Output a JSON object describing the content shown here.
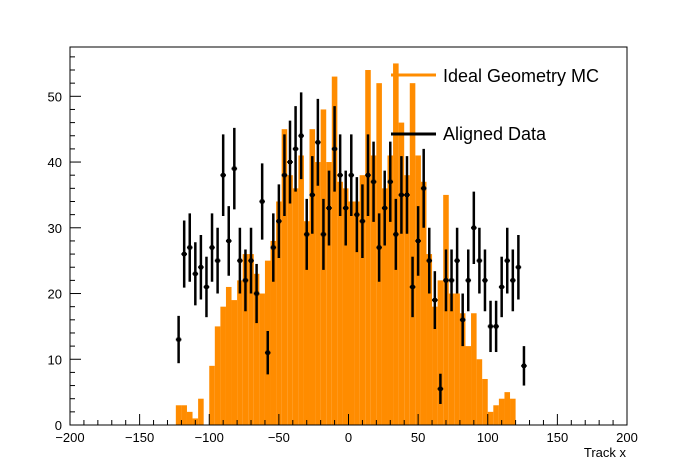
{
  "chart_data": {
    "type": "bar",
    "title": "",
    "xlabel": "Track x",
    "ylabel": "",
    "xlim": [
      -200,
      200
    ],
    "ylim": [
      0,
      57.5
    ],
    "bin_width": 4,
    "x_ticks": [
      -200,
      -150,
      -100,
      -50,
      0,
      50,
      100,
      150,
      200
    ],
    "y_ticks": [
      0,
      10,
      20,
      30,
      40,
      50
    ],
    "grid": false,
    "legend_position": "top-right",
    "series": [
      {
        "name": "Ideal Geometry MC",
        "style": "filled-histogram",
        "color": "#ff8c00",
        "bins": [
          {
            "x": -122,
            "y": 3
          },
          {
            "x": -118,
            "y": 3
          },
          {
            "x": -114,
            "y": 2
          },
          {
            "x": -110,
            "y": 1
          },
          {
            "x": -106,
            "y": 4
          },
          {
            "x": -102,
            "y": 0
          },
          {
            "x": -98,
            "y": 9
          },
          {
            "x": -94,
            "y": 15
          },
          {
            "x": -90,
            "y": 18
          },
          {
            "x": -86,
            "y": 21
          },
          {
            "x": -82,
            "y": 19
          },
          {
            "x": -78,
            "y": 22
          },
          {
            "x": -74,
            "y": 26
          },
          {
            "x": -70,
            "y": 26
          },
          {
            "x": -66,
            "y": 23
          },
          {
            "x": -62,
            "y": 20
          },
          {
            "x": -58,
            "y": 25
          },
          {
            "x": -54,
            "y": 28
          },
          {
            "x": -50,
            "y": 34
          },
          {
            "x": -46,
            "y": 45
          },
          {
            "x": -42,
            "y": 38
          },
          {
            "x": -38,
            "y": 36
          },
          {
            "x": -34,
            "y": 41
          },
          {
            "x": -30,
            "y": 31
          },
          {
            "x": -26,
            "y": 45
          },
          {
            "x": -22,
            "y": 40
          },
          {
            "x": -18,
            "y": 48
          },
          {
            "x": -14,
            "y": 40
          },
          {
            "x": -10,
            "y": 53
          },
          {
            "x": -6,
            "y": 37
          },
          {
            "x": -2,
            "y": 36
          },
          {
            "x": 2,
            "y": 34
          },
          {
            "x": 6,
            "y": 34
          },
          {
            "x": 10,
            "y": 38
          },
          {
            "x": 14,
            "y": 54
          },
          {
            "x": 18,
            "y": 41
          },
          {
            "x": 22,
            "y": 52
          },
          {
            "x": 26,
            "y": 36
          },
          {
            "x": 30,
            "y": 41
          },
          {
            "x": 34,
            "y": 55
          },
          {
            "x": 38,
            "y": 46
          },
          {
            "x": 42,
            "y": 38
          },
          {
            "x": 46,
            "y": 52
          },
          {
            "x": 50,
            "y": 41
          },
          {
            "x": 54,
            "y": 37
          },
          {
            "x": 58,
            "y": 26
          },
          {
            "x": 62,
            "y": 18
          },
          {
            "x": 66,
            "y": 22
          },
          {
            "x": 70,
            "y": 35
          },
          {
            "x": 74,
            "y": 20
          },
          {
            "x": 78,
            "y": 20
          },
          {
            "x": 82,
            "y": 17
          },
          {
            "x": 86,
            "y": 12
          },
          {
            "x": 90,
            "y": 17
          },
          {
            "x": 94,
            "y": 10
          },
          {
            "x": 98,
            "y": 7
          },
          {
            "x": 102,
            "y": 2
          },
          {
            "x": 106,
            "y": 3
          },
          {
            "x": 110,
            "y": 4
          },
          {
            "x": 114,
            "y": 5
          },
          {
            "x": 118,
            "y": 4
          },
          {
            "x": 122,
            "y": 0
          }
        ]
      },
      {
        "name": "Aligned Data",
        "style": "points-with-error-bars",
        "color": "#000000",
        "points": [
          {
            "x": -122,
            "y": 13,
            "err": 3.6
          },
          {
            "x": -118,
            "y": 26,
            "err": 5.1
          },
          {
            "x": -114,
            "y": 27,
            "err": 5.2
          },
          {
            "x": -110,
            "y": 23,
            "err": 4.8
          },
          {
            "x": -106,
            "y": 24,
            "err": 4.9
          },
          {
            "x": -102,
            "y": 21,
            "err": 4.6
          },
          {
            "x": -98,
            "y": 27,
            "err": 5.2
          },
          {
            "x": -94,
            "y": 25,
            "err": 5.0
          },
          {
            "x": -90,
            "y": 38,
            "err": 6.2
          },
          {
            "x": -86,
            "y": 28,
            "err": 5.3
          },
          {
            "x": -82,
            "y": 39,
            "err": 6.2
          },
          {
            "x": -78,
            "y": 25,
            "err": 5.0
          },
          {
            "x": -74,
            "y": 22,
            "err": 4.7
          },
          {
            "x": -70,
            "y": 25,
            "err": 5.0
          },
          {
            "x": -66,
            "y": 20,
            "err": 4.5
          },
          {
            "x": -62,
            "y": 34,
            "err": 5.8
          },
          {
            "x": -58,
            "y": 11,
            "err": 3.3
          },
          {
            "x": -54,
            "y": 27,
            "err": 5.2
          },
          {
            "x": -50,
            "y": 31,
            "err": 5.6
          },
          {
            "x": -46,
            "y": 38,
            "err": 6.2
          },
          {
            "x": -42,
            "y": 40,
            "err": 6.3
          },
          {
            "x": -38,
            "y": 42,
            "err": 6.5
          },
          {
            "x": -34,
            "y": 44,
            "err": 6.6
          },
          {
            "x": -30,
            "y": 29,
            "err": 5.4
          },
          {
            "x": -26,
            "y": 35,
            "err": 5.9
          },
          {
            "x": -22,
            "y": 43,
            "err": 6.6
          },
          {
            "x": -18,
            "y": 29,
            "err": 5.4
          },
          {
            "x": -14,
            "y": 33,
            "err": 5.7
          },
          {
            "x": -10,
            "y": 42,
            "err": 6.5
          },
          {
            "x": -6,
            "y": 38,
            "err": 6.2
          },
          {
            "x": -2,
            "y": 33,
            "err": 5.7
          },
          {
            "x": 2,
            "y": 38,
            "err": 6.2
          },
          {
            "x": 6,
            "y": 32,
            "err": 5.7
          },
          {
            "x": 10,
            "y": 31,
            "err": 5.6
          },
          {
            "x": 14,
            "y": 38,
            "err": 6.2
          },
          {
            "x": 18,
            "y": 37,
            "err": 6.1
          },
          {
            "x": 22,
            "y": 27,
            "err": 5.2
          },
          {
            "x": 26,
            "y": 33,
            "err": 5.7
          },
          {
            "x": 30,
            "y": 37,
            "err": 6.1
          },
          {
            "x": 34,
            "y": 29,
            "err": 5.4
          },
          {
            "x": 38,
            "y": 35,
            "err": 5.9
          },
          {
            "x": 42,
            "y": 35,
            "err": 5.9
          },
          {
            "x": 46,
            "y": 21,
            "err": 4.6
          },
          {
            "x": 50,
            "y": 28,
            "err": 5.3
          },
          {
            "x": 54,
            "y": 36,
            "err": 6.0
          },
          {
            "x": 58,
            "y": 25,
            "err": 5.0
          },
          {
            "x": 62,
            "y": 19,
            "err": 4.4
          },
          {
            "x": 66,
            "y": 5.5,
            "err": 2.3
          },
          {
            "x": 70,
            "y": 22,
            "err": 4.7
          },
          {
            "x": 74,
            "y": 22,
            "err": 4.7
          },
          {
            "x": 78,
            "y": 25,
            "err": 5.0
          },
          {
            "x": 82,
            "y": 16,
            "err": 4.0
          },
          {
            "x": 86,
            "y": 22,
            "err": 4.7
          },
          {
            "x": 90,
            "y": 30,
            "err": 5.5
          },
          {
            "x": 94,
            "y": 25,
            "err": 5.0
          },
          {
            "x": 98,
            "y": 22,
            "err": 4.7
          },
          {
            "x": 102,
            "y": 15,
            "err": 3.9
          },
          {
            "x": 106,
            "y": 15,
            "err": 3.9
          },
          {
            "x": 110,
            "y": 21,
            "err": 4.6
          },
          {
            "x": 114,
            "y": 25,
            "err": 5.0
          },
          {
            "x": 118,
            "y": 22,
            "err": 4.7
          },
          {
            "x": 122,
            "y": 24,
            "err": 4.9
          },
          {
            "x": 126,
            "y": 9,
            "err": 3.0
          }
        ]
      }
    ]
  }
}
